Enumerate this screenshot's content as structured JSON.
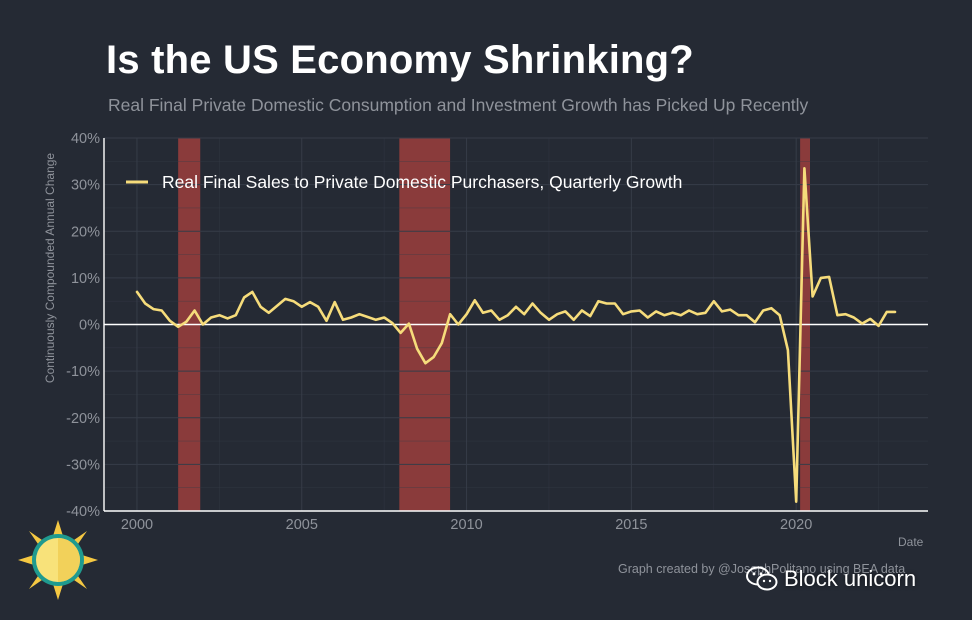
{
  "header": {
    "title": "Is the US Economy Shrinking?",
    "subtitle": "Real Final Private Domestic Consumption and Investment Growth has Picked Up Recently"
  },
  "footer": {
    "credit": "Graph created by @JosephPolitano using BEA data",
    "watermark": "Block unicorn"
  },
  "colors": {
    "background": "#252a34",
    "line": "#f6dc7b",
    "recession": "#8a3b3b",
    "grid": "#363c48",
    "axis_text": "#8f939b"
  },
  "chart_data": {
    "type": "line",
    "title": "Is the US Economy Shrinking?",
    "subtitle": "Real Final Private Domestic Consumption and Investment Growth has Picked Up Recently",
    "xlabel": "Date",
    "ylabel": "Continuously Compounded Annual Change",
    "xlim": [
      1999.0,
      2024.0
    ],
    "ylim": [
      -40,
      40
    ],
    "x_ticks": [
      2000,
      2005,
      2010,
      2015,
      2020
    ],
    "x_tick_labels": [
      "2000",
      "2005",
      "2010",
      "2015",
      "2020"
    ],
    "y_ticks": [
      -40,
      -30,
      -20,
      -10,
      0,
      10,
      20,
      30,
      40
    ],
    "y_tick_labels": [
      "-40%",
      "-30%",
      "-20%",
      "-10%",
      "0%",
      "10%",
      "20%",
      "30%",
      "40%"
    ],
    "grid": true,
    "legend_position": "top-left",
    "recessions": [
      {
        "start": 2001.25,
        "end": 2001.92
      },
      {
        "start": 2007.96,
        "end": 2009.5
      },
      {
        "start": 2020.12,
        "end": 2020.42
      }
    ],
    "series": [
      {
        "name": "Real Final Sales to Private Domestic Purchasers, Quarterly Growth",
        "x": [
          2000.0,
          2000.25,
          2000.5,
          2000.75,
          2001.0,
          2001.25,
          2001.5,
          2001.75,
          2002.0,
          2002.25,
          2002.5,
          2002.75,
          2003.0,
          2003.25,
          2003.5,
          2003.75,
          2004.0,
          2004.25,
          2004.5,
          2004.75,
          2005.0,
          2005.25,
          2005.5,
          2005.75,
          2006.0,
          2006.25,
          2006.5,
          2006.75,
          2007.0,
          2007.25,
          2007.5,
          2007.75,
          2008.0,
          2008.25,
          2008.5,
          2008.75,
          2009.0,
          2009.25,
          2009.5,
          2009.75,
          2010.0,
          2010.25,
          2010.5,
          2010.75,
          2011.0,
          2011.25,
          2011.5,
          2011.75,
          2012.0,
          2012.25,
          2012.5,
          2012.75,
          2013.0,
          2013.25,
          2013.5,
          2013.75,
          2014.0,
          2014.25,
          2014.5,
          2014.75,
          2015.0,
          2015.25,
          2015.5,
          2015.75,
          2016.0,
          2016.25,
          2016.5,
          2016.75,
          2017.0,
          2017.25,
          2017.5,
          2017.75,
          2018.0,
          2018.25,
          2018.5,
          2018.75,
          2019.0,
          2019.25,
          2019.5,
          2019.75,
          2020.0,
          2020.25,
          2020.5,
          2020.75,
          2021.0,
          2021.25,
          2021.5,
          2021.75,
          2022.0,
          2022.25,
          2022.5,
          2022.75,
          2023.0
        ],
        "y": [
          7.0,
          4.5,
          3.3,
          3.0,
          0.8,
          -0.5,
          0.6,
          3.0,
          0.0,
          1.5,
          2.0,
          1.3,
          2.0,
          5.8,
          7.0,
          3.8,
          2.5,
          4.0,
          5.5,
          5.0,
          3.8,
          4.8,
          3.8,
          0.8,
          4.8,
          1.0,
          1.5,
          2.2,
          1.6,
          1.0,
          1.5,
          0.3,
          -1.8,
          0.2,
          -5.2,
          -8.3,
          -7.0,
          -4.0,
          2.2,
          0.0,
          2.2,
          5.2,
          2.5,
          3.0,
          1.0,
          2.0,
          3.8,
          2.2,
          4.5,
          2.5,
          1.0,
          2.2,
          2.8,
          1.0,
          3.0,
          1.8,
          5.0,
          4.5,
          4.5,
          2.2,
          2.8,
          3.0,
          1.5,
          2.8,
          2.0,
          2.5,
          2.0,
          3.0,
          2.2,
          2.5,
          5.0,
          2.8,
          3.2,
          2.0,
          2.0,
          0.5,
          3.0,
          3.5,
          2.0,
          -5.5,
          -38.0,
          33.5,
          6.0,
          10.0,
          10.2,
          2.0,
          2.2,
          1.5,
          0.2,
          1.2,
          -0.3,
          2.7,
          2.7
        ]
      }
    ]
  }
}
